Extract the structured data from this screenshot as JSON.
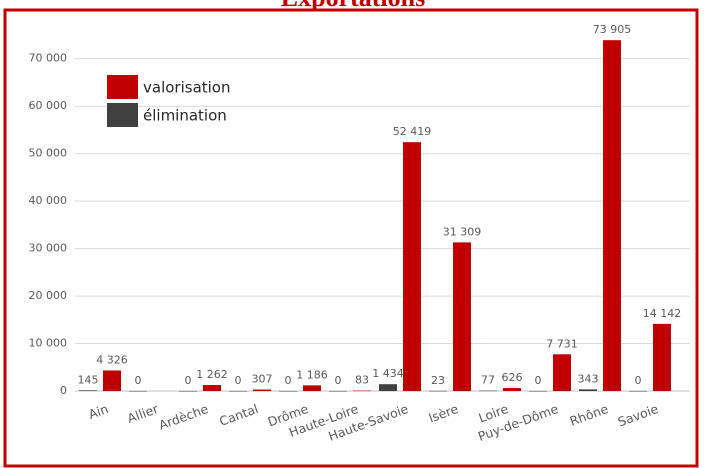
{
  "chart_data": {
    "type": "bar",
    "title": "Exportations",
    "categories": [
      "Ain",
      "Allier",
      "Ardèche",
      "Cantal",
      "Drôme",
      "Haute-Loire",
      "Haute-Savoie",
      "Isère",
      "Loire",
      "Puy-de-Dôme",
      "Rhône",
      "Savoie"
    ],
    "series": [
      {
        "name": "élimination",
        "color": "#404040",
        "values": [
          145,
          0,
          0,
          0,
          0,
          0,
          1434,
          23,
          77,
          0,
          343,
          0
        ],
        "value_labels": [
          "145",
          "0",
          "0",
          "0",
          "0",
          "0",
          "1 434",
          "23",
          "77",
          "0",
          "343",
          "0"
        ]
      },
      {
        "name": "valorisation",
        "color": "#c00000",
        "values": [
          4326,
          null,
          1262,
          307,
          1186,
          83,
          52419,
          31309,
          626,
          7731,
          73905,
          14142
        ],
        "value_labels": [
          "4 326",
          null,
          "1 262",
          "307",
          "1 186",
          "83",
          "52 419",
          "31 309",
          "626",
          "7 731",
          "73 905",
          "14 142"
        ]
      }
    ],
    "ylim": [
      0,
      79000
    ],
    "yticks": [
      0,
      {
        "value": 10000,
        "label": "10 000"
      },
      {
        "value": 20000,
        "label": "20 000"
      },
      {
        "value": 30000,
        "label": "30 000"
      },
      {
        "value": 40000,
        "label": "40 000"
      },
      {
        "value": 50000,
        "label": "50 000"
      },
      {
        "value": 60000,
        "label": "60 000"
      },
      {
        "value": 70000,
        "label": "70 000"
      }
    ],
    "grid": true,
    "legend": "top-left"
  }
}
